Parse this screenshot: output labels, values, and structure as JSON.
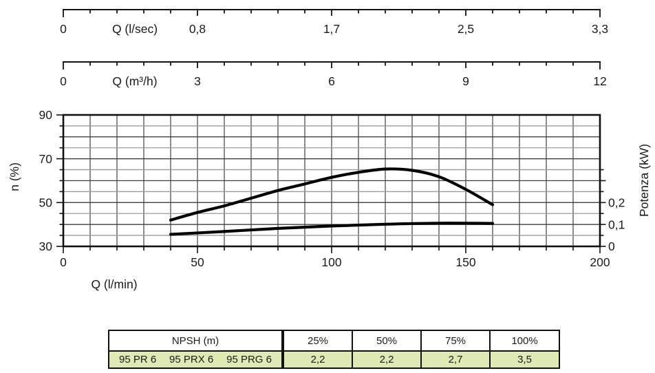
{
  "colors": {
    "curve": "#000000",
    "grid_dark": "#3f3f3f",
    "grid_light": "#9a9a9a",
    "axis": "#111111",
    "text": "#1a1a1a",
    "table_row_bg": "#dfe9b4"
  },
  "rulers": [
    {
      "unit_label": "Q (l/sec)",
      "tick_labels": [
        "0",
        "0,8",
        "1,7",
        "2,5",
        "3,3"
      ]
    },
    {
      "unit_label": "Q (m³/h)",
      "tick_labels": [
        "0",
        "3",
        "6",
        "9",
        "12"
      ]
    }
  ],
  "chart_data": {
    "type": "line",
    "title": "",
    "x_axis": {
      "label": "Q (l/min)",
      "range": [
        0,
        200
      ],
      "minor_step": 10,
      "major_tick_labels": [
        "0",
        "50",
        "100",
        "150",
        "200"
      ],
      "major_tick_values": [
        0,
        50,
        100,
        150,
        200
      ]
    },
    "y_left": {
      "label": "n (%)",
      "range": [
        30,
        90
      ],
      "grid_step": 5,
      "major_tick_labels": [
        "90",
        "70",
        "50",
        "30"
      ],
      "major_tick_values": [
        90,
        70,
        50,
        30
      ]
    },
    "y_right": {
      "label": "Potenza (kW)",
      "minor_step": 0.05,
      "tick_max": 0.35,
      "kw_per_grid_row": 0.05,
      "major_tick_labels": [
        "0",
        "0,1",
        "0,2"
      ],
      "major_tick_values": [
        0,
        0.1,
        0.2
      ]
    },
    "grid": true,
    "legend": "none",
    "series": [
      {
        "name": "efficiency",
        "axis": "left",
        "units": "%",
        "points": [
          [
            40,
            42
          ],
          [
            50,
            45.5
          ],
          [
            60,
            48.5
          ],
          [
            70,
            52
          ],
          [
            80,
            55.5
          ],
          [
            90,
            58.5
          ],
          [
            100,
            61.5
          ],
          [
            110,
            63.8
          ],
          [
            120,
            65.3
          ],
          [
            130,
            64.7
          ],
          [
            140,
            61.8
          ],
          [
            150,
            56
          ],
          [
            160,
            49
          ]
        ]
      },
      {
        "name": "potenza",
        "axis": "right",
        "units": "kW",
        "points": [
          [
            40,
            0.055
          ],
          [
            60,
            0.068
          ],
          [
            80,
            0.082
          ],
          [
            100,
            0.093
          ],
          [
            120,
            0.101
          ],
          [
            140,
            0.106
          ],
          [
            160,
            0.105
          ]
        ]
      }
    ]
  },
  "table": {
    "header": {
      "npsh": "NPSH (m)",
      "cols": [
        "25%",
        "50%",
        "75%",
        "100%"
      ]
    },
    "row": {
      "models": [
        "95 PR 6",
        "95 PRX 6",
        "95 PRG 6"
      ],
      "values": [
        "2,2",
        "2,2",
        "2,7",
        "3,5"
      ]
    }
  }
}
